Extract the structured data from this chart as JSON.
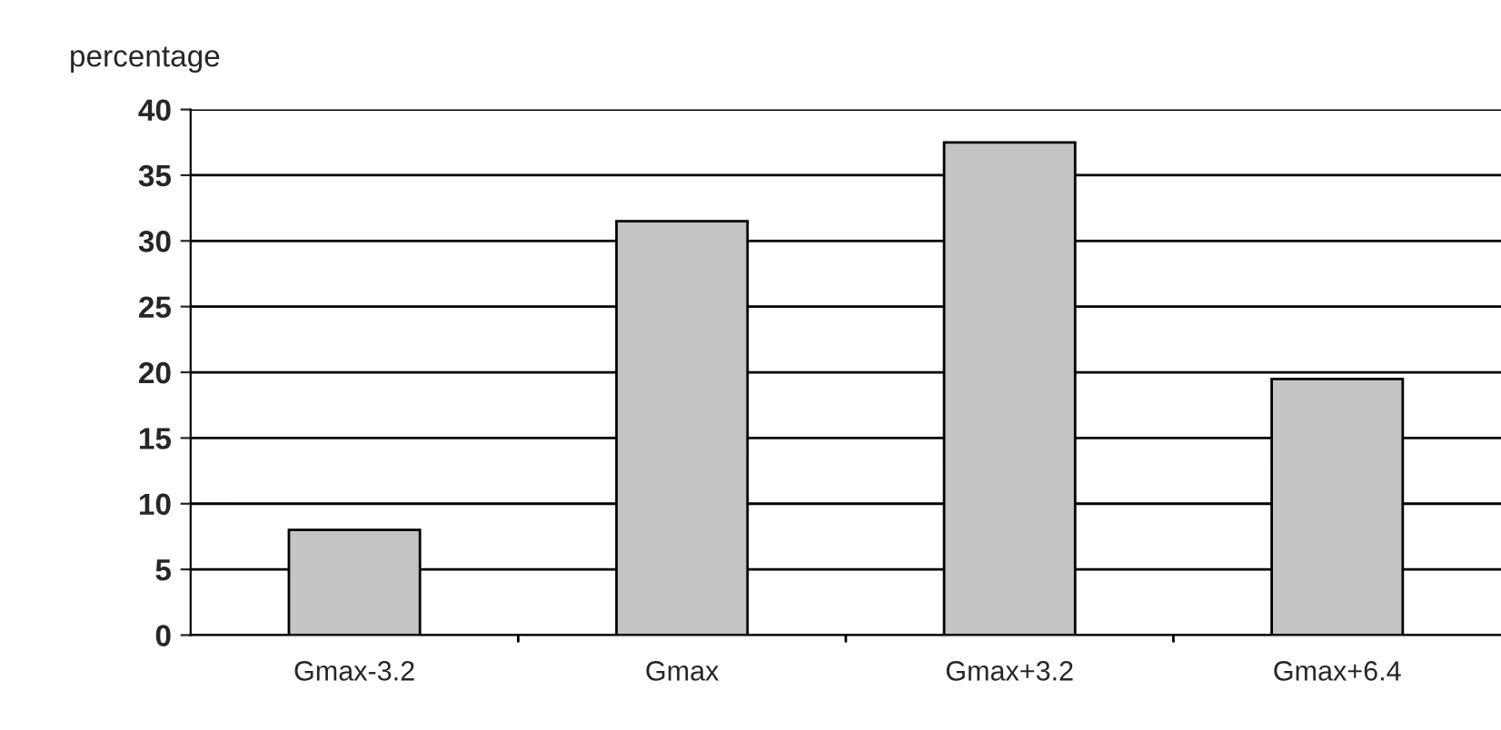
{
  "chart_data": {
    "type": "bar",
    "ylabel": "percentage",
    "categories": [
      "Gmax-3.2",
      "Gmax",
      "Gmax+3.2",
      "Gmax+6.4"
    ],
    "values": [
      8,
      31.5,
      37.5,
      19.5
    ],
    "color": "#c4c4c4",
    "ylim": [
      0,
      40
    ],
    "yticks": [
      0,
      5,
      10,
      15,
      20,
      25,
      30,
      35,
      40
    ],
    "grid": "y"
  }
}
